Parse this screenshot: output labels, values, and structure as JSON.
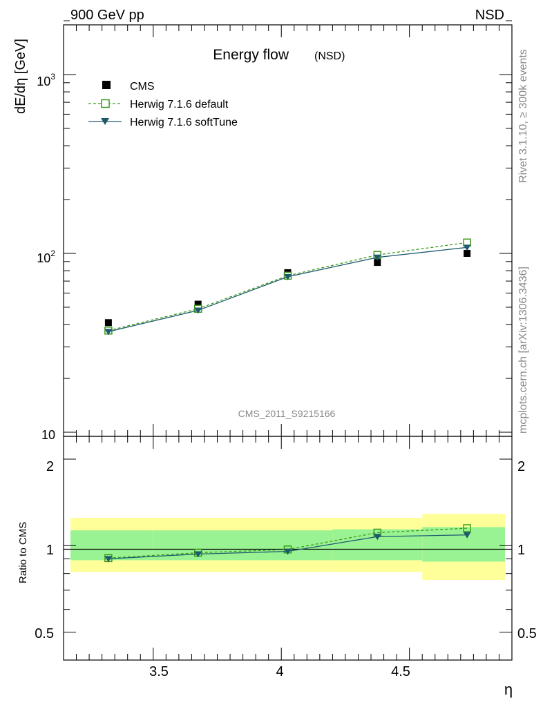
{
  "header": {
    "left_label": "900 GeV pp",
    "right_label": "NSD"
  },
  "side_labels": {
    "rivet": "Rivet 3.1.10, ≥ 300k events",
    "mcplots": "mcplots.cern.ch [arXiv:1306.3436]"
  },
  "chart_data": [
    {
      "type": "line",
      "panel": "main",
      "title": "Energy flow",
      "title_suffix": "(NSD)",
      "ylabel": "dE/dη [GeV]",
      "xlabel": "",
      "y_scale": "log",
      "xlim": [
        3.15,
        4.9
      ],
      "ylim": [
        10,
        2000
      ],
      "y_tick_labels": [
        "10",
        "10²",
        "10³"
      ],
      "watermark": "CMS_2011_S9215166",
      "legend_position": "top-left",
      "x": [
        3.325,
        3.675,
        4.025,
        4.375,
        4.725
      ],
      "series": [
        {
          "name": "CMS",
          "style": "markers",
          "color": "#000000",
          "values": [
            41,
            52,
            78,
            89,
            100
          ]
        },
        {
          "name": "Herwig 7.1.6 default",
          "style": "dashed-open-square",
          "color": "#3a9a1a",
          "values": [
            37,
            49,
            75,
            98,
            115
          ]
        },
        {
          "name": "Herwig 7.1.6 softTune",
          "style": "solid-triangle",
          "color": "#1d5a6e",
          "values": [
            36.5,
            48,
            74,
            95,
            108
          ]
        }
      ]
    },
    {
      "type": "line",
      "panel": "ratio",
      "ylabel": "Ratio to CMS",
      "xlabel": "η",
      "xlim": [
        3.15,
        4.9
      ],
      "ylim": [
        0.4,
        2.4
      ],
      "y_tick_labels": [
        "0.5",
        "1",
        "2"
      ],
      "x_tick_labels": [
        "3.5",
        "4",
        "4.5"
      ],
      "x": [
        3.325,
        3.675,
        4.025,
        4.375,
        4.725
      ],
      "uncertainty_bands": {
        "edges": [
          3.15,
          3.5,
          4.2,
          4.55,
          4.9
        ],
        "inner_low": [
          0.89,
          0.89,
          0.89,
          0.88
        ],
        "inner_high": [
          1.13,
          1.13,
          1.14,
          1.16
        ],
        "outer_low": [
          0.81,
          0.81,
          0.81,
          0.76
        ],
        "outer_high": [
          1.25,
          1.25,
          1.25,
          1.29
        ],
        "inner_color": "#99f393",
        "outer_color": "#ffff99"
      },
      "series": [
        {
          "name": "Herwig 7.1.6 default",
          "color": "#3a9a1a",
          "values": [
            0.905,
            0.945,
            0.97,
            1.11,
            1.15
          ]
        },
        {
          "name": "Herwig 7.1.6 softTune",
          "color": "#1d5a6e",
          "values": [
            0.9,
            0.935,
            0.955,
            1.075,
            1.09
          ]
        }
      ]
    }
  ]
}
